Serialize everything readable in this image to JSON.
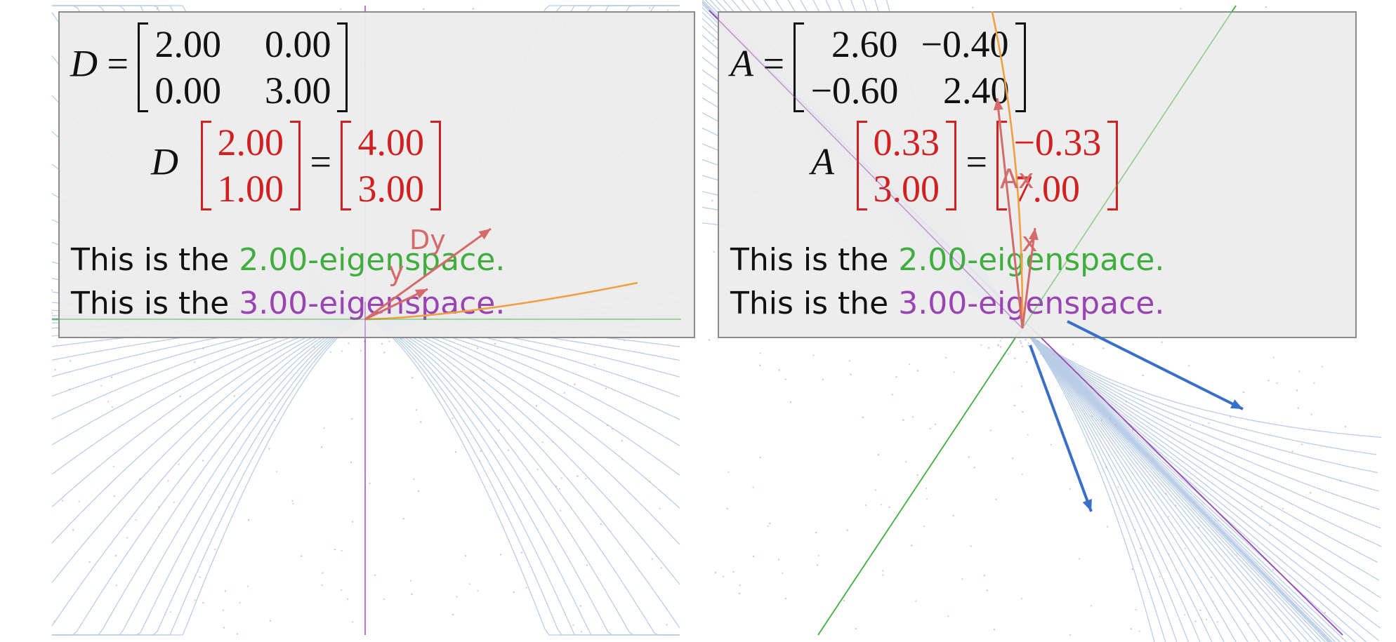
{
  "left": {
    "matrix_symbol": "D",
    "matrix": [
      [
        "2.00",
        "0.00"
      ],
      [
        "0.00",
        "3.00"
      ]
    ],
    "input_vector": [
      "2.00",
      "1.00"
    ],
    "output_vector": [
      "4.00",
      "3.00"
    ],
    "eigen_line_1": {
      "prefix": "This is the ",
      "value": "2.00-eigenspace."
    },
    "eigen_line_2": {
      "prefix": "This is the ",
      "value": "3.00-eigenspace."
    },
    "vector_labels": {
      "input": "y",
      "output": "Dy"
    }
  },
  "right": {
    "matrix_symbol": "A",
    "matrix": [
      [
        "2.60",
        "−0.40"
      ],
      [
        "−0.60",
        "2.40"
      ]
    ],
    "input_vector": [
      "0.33",
      "3.00"
    ],
    "output_vector": [
      "−0.33",
      "7.00"
    ],
    "eigen_line_1": {
      "prefix": "This is the ",
      "value": "2.00-eigenspace."
    },
    "eigen_line_2": {
      "prefix": "This is the ",
      "value": "3.00-eigenspace."
    },
    "vector_labels": {
      "input": "x",
      "output": "Ax"
    }
  },
  "colors": {
    "eigenspace_2": "#3fae3f",
    "eigenspace_3": "#9a44b4",
    "vector": "#d46a6a",
    "trajectory": "#f0a040",
    "flow_lines": "#b9cde6",
    "blue_arrows": "#3a6fc9",
    "panel_bg": "#ececec"
  }
}
